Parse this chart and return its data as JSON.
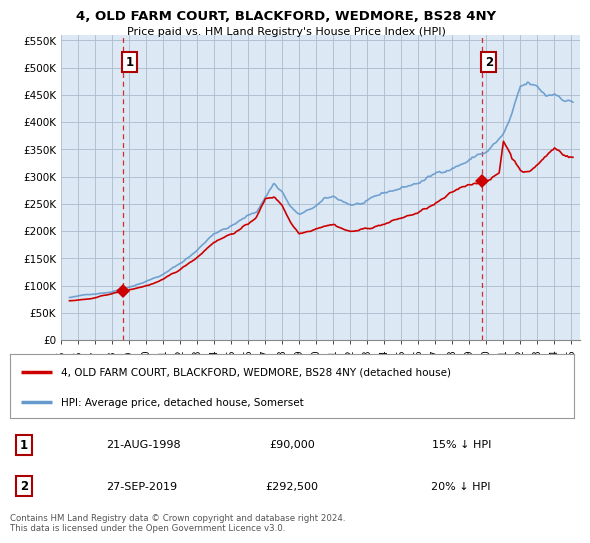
{
  "title": "4, OLD FARM COURT, BLACKFORD, WEDMORE, BS28 4NY",
  "subtitle": "Price paid vs. HM Land Registry's House Price Index (HPI)",
  "ylabel_ticks": [
    "£0",
    "£50K",
    "£100K",
    "£150K",
    "£200K",
    "£250K",
    "£300K",
    "£350K",
    "£400K",
    "£450K",
    "£500K",
    "£550K"
  ],
  "ytick_values": [
    0,
    50000,
    100000,
    150000,
    200000,
    250000,
    300000,
    350000,
    400000,
    450000,
    500000,
    550000
  ],
  "ylim": [
    0,
    560000
  ],
  "xlim_start": 1995.25,
  "xlim_end": 2025.5,
  "xtick_years": [
    1995,
    1996,
    1997,
    1998,
    1999,
    2000,
    2001,
    2002,
    2003,
    2004,
    2005,
    2006,
    2007,
    2008,
    2009,
    2010,
    2011,
    2012,
    2013,
    2014,
    2015,
    2016,
    2017,
    2018,
    2019,
    2020,
    2021,
    2022,
    2023,
    2024,
    2025
  ],
  "sale1_x": 1998.64,
  "sale1_y": 90000,
  "sale1_label": "1",
  "sale2_x": 2019.75,
  "sale2_y": 292500,
  "sale2_label": "2",
  "sale_color": "#cc0000",
  "hpi_color": "#6699cc",
  "chart_bg_color": "#dce9f5",
  "dashed_line_color": "#cc0000",
  "legend_property": "4, OLD FARM COURT, BLACKFORD, WEDMORE, BS28 4NY (detached house)",
  "legend_hpi": "HPI: Average price, detached house, Somerset",
  "table_row1": [
    "1",
    "21-AUG-1998",
    "£90,000",
    "15% ↓ HPI"
  ],
  "table_row2": [
    "2",
    "27-SEP-2019",
    "£292,500",
    "20% ↓ HPI"
  ],
  "footnote": "Contains HM Land Registry data © Crown copyright and database right 2024.\nThis data is licensed under the Open Government Licence v3.0.",
  "background_color": "#ffffff",
  "grid_color": "#aabbcc"
}
